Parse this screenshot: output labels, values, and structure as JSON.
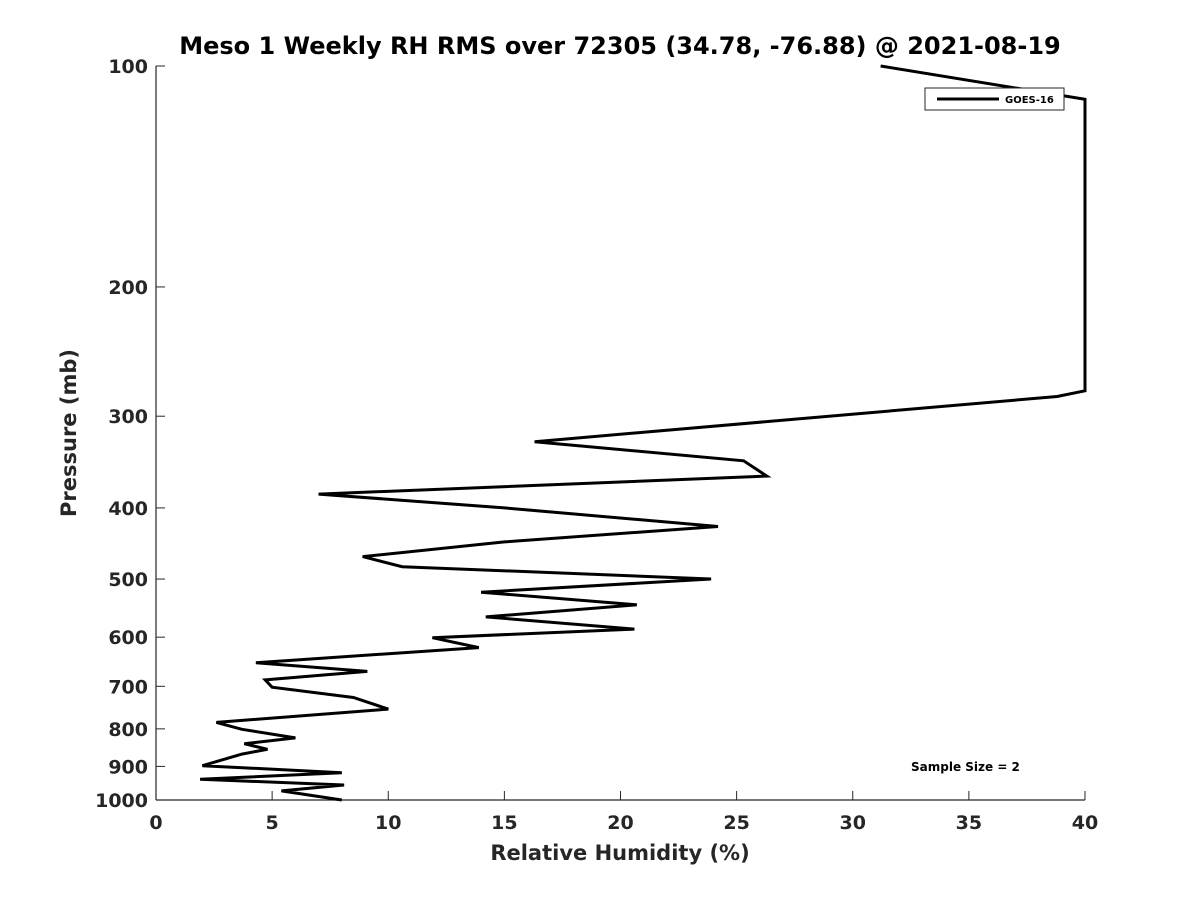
{
  "chart_data": {
    "type": "line",
    "title": "Meso 1 Weekly RH RMS over 72305 (34.78, -76.88) @ 2021-08-19",
    "xlabel": "Relative Humidity (%)",
    "ylabel": "Pressure (mb)",
    "xlim": [
      0,
      40
    ],
    "ylim": [
      100,
      1000
    ],
    "yscale": "log",
    "yreversed": true,
    "x_ticks": [
      "0",
      "5",
      "10",
      "15",
      "20",
      "25",
      "30",
      "35",
      "40"
    ],
    "y_ticks": [
      "100",
      "200",
      "300",
      "400",
      "500",
      "600",
      "700",
      "800",
      "900",
      "1000"
    ],
    "grid": false,
    "legend_position": "top-right",
    "annotation": "Sample Size = 2",
    "series": [
      {
        "name": "GOES-16",
        "color": "#000000",
        "points": [
          {
            "x": 31.2,
            "y": 100
          },
          {
            "x": 40.0,
            "y": 111
          },
          {
            "x": 40.0,
            "y": 277
          },
          {
            "x": 38.8,
            "y": 282
          },
          {
            "x": 16.3,
            "y": 325
          },
          {
            "x": 25.3,
            "y": 345
          },
          {
            "x": 26.3,
            "y": 362
          },
          {
            "x": 7.0,
            "y": 383
          },
          {
            "x": 15.0,
            "y": 400
          },
          {
            "x": 24.2,
            "y": 424
          },
          {
            "x": 15.0,
            "y": 445
          },
          {
            "x": 8.9,
            "y": 466
          },
          {
            "x": 10.6,
            "y": 481
          },
          {
            "x": 23.9,
            "y": 500
          },
          {
            "x": 14.0,
            "y": 521
          },
          {
            "x": 20.7,
            "y": 542
          },
          {
            "x": 14.2,
            "y": 563
          },
          {
            "x": 20.6,
            "y": 585
          },
          {
            "x": 11.9,
            "y": 601
          },
          {
            "x": 13.9,
            "y": 620
          },
          {
            "x": 4.3,
            "y": 650
          },
          {
            "x": 9.1,
            "y": 668
          },
          {
            "x": 4.7,
            "y": 686
          },
          {
            "x": 5.0,
            "y": 702
          },
          {
            "x": 8.5,
            "y": 725
          },
          {
            "x": 10.0,
            "y": 752
          },
          {
            "x": 2.6,
            "y": 784
          },
          {
            "x": 3.7,
            "y": 801
          },
          {
            "x": 6.0,
            "y": 823
          },
          {
            "x": 3.8,
            "y": 838
          },
          {
            "x": 4.8,
            "y": 853
          },
          {
            "x": 3.7,
            "y": 866
          },
          {
            "x": 2.0,
            "y": 898
          },
          {
            "x": 8.0,
            "y": 918
          },
          {
            "x": 1.9,
            "y": 937
          },
          {
            "x": 8.1,
            "y": 954
          },
          {
            "x": 5.4,
            "y": 972
          },
          {
            "x": 8.0,
            "y": 1000
          }
        ]
      }
    ]
  }
}
